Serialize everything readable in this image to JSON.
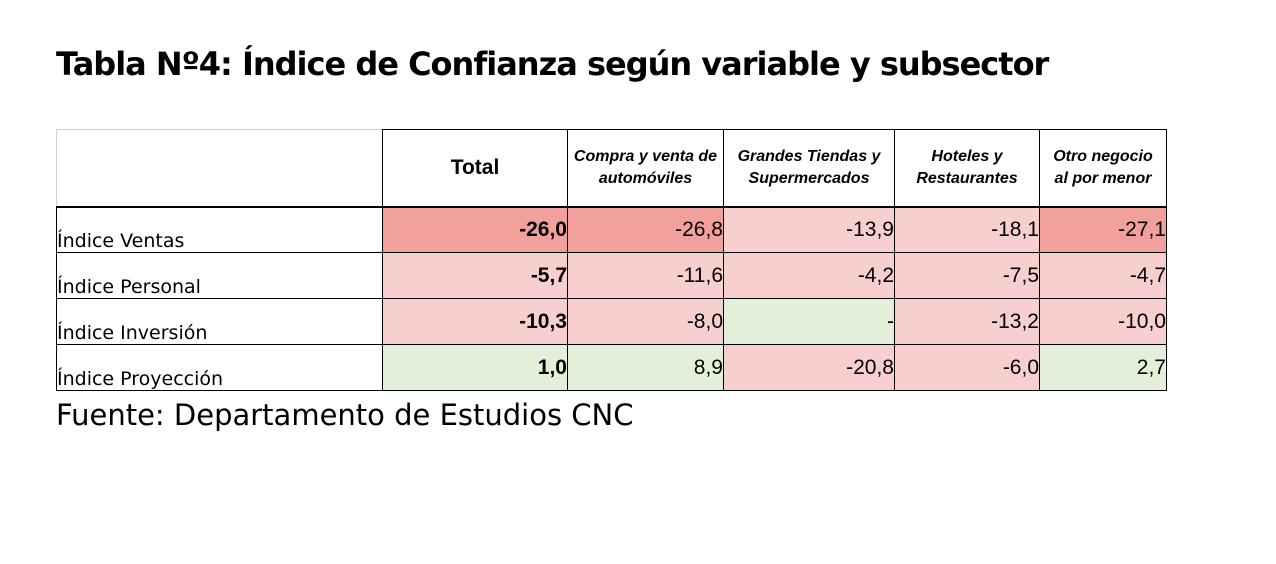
{
  "title": "Tabla Nº4: Índice de Confianza según variable y subsector",
  "columns": [
    "Total",
    "Compra y venta de automóviles",
    "Grandes Tiendas y Supermercados",
    "Hoteles y Restaurantes",
    "Otro negocio al por menor"
  ],
  "rows": [
    {
      "label": "Índice Ventas",
      "values": [
        "-26,0",
        "-26,8",
        "-13,9",
        "-18,1",
        "-27,1"
      ]
    },
    {
      "label": "Índice Personal",
      "values": [
        "-5,7",
        "-11,6",
        "-4,2",
        "-7,5",
        "-4,7"
      ]
    },
    {
      "label": "Índice Inversión",
      "values": [
        "-10,3",
        "-8,0",
        "-",
        "-13,2",
        "-10,0"
      ]
    },
    {
      "label": "Índice Proyección",
      "values": [
        "1,0",
        "8,9",
        "-20,8",
        "-6,0",
        "2,7"
      ]
    }
  ],
  "cell_shading": [
    [
      "neg-strong",
      "neg-strong",
      "neg-light",
      "neg-light",
      "neg-strong"
    ],
    [
      "neg-light",
      "neg-light",
      "neg-light",
      "neg-light",
      "neg-light"
    ],
    [
      "neg-light",
      "neg-light",
      "pos-light",
      "neg-light",
      "neg-light"
    ],
    [
      "pos-light",
      "pos-light",
      "neg-light",
      "neg-light",
      "pos-light"
    ]
  ],
  "colors": {
    "neg-strong": "#f1a09c",
    "neg-light": "#f7cfce",
    "pos-light": "#e3efd9"
  },
  "source": "Fuente: Departamento de Estudios CNC"
}
